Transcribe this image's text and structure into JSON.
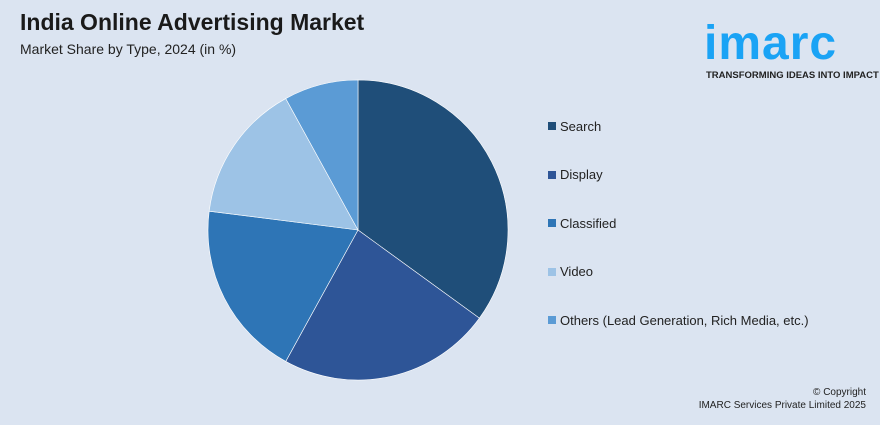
{
  "header": {
    "title": "India Online Advertising Market",
    "subtitle": "Market Share by Type, 2024 (in %)"
  },
  "logo": {
    "word": "imarc",
    "tagline": "TRANSFORMING IDEAS INTO IMPACT",
    "color": "#1aa3f5"
  },
  "chart_data": {
    "type": "pie",
    "title": "India Online Advertising Market",
    "subtitle": "Market Share by Type, 2024 (in %)",
    "categories": [
      "Search",
      "Display",
      "Classified",
      "Video",
      "Others (Lead Generation, Rich Media, etc.)"
    ],
    "values": [
      35,
      23,
      19,
      15,
      8
    ],
    "colors": [
      "#1f4e79",
      "#2e5597",
      "#2e75b6",
      "#9dc3e6",
      "#5b9bd5"
    ],
    "start_angle": "top, clockwise",
    "legend_position": "right"
  },
  "footer": {
    "line1": "© Copyright",
    "line2": "IMARC Services Private Limited 2025"
  }
}
